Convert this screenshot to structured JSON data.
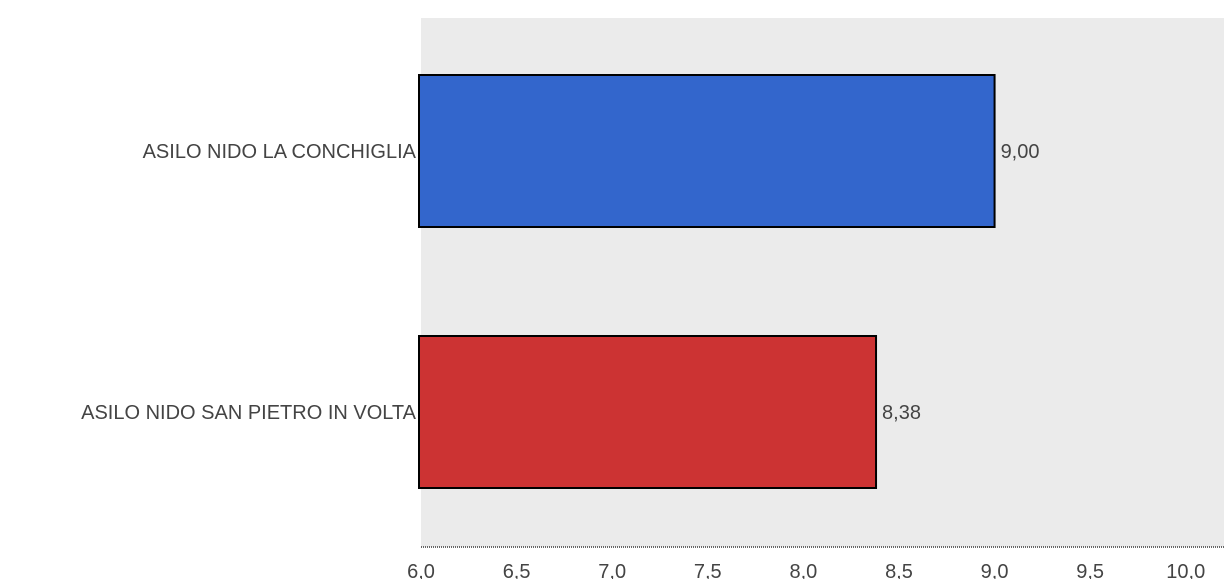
{
  "chart_data": {
    "type": "bar",
    "orientation": "horizontal",
    "title": "",
    "xlabel": "",
    "ylabel": "",
    "xlim": [
      6.0,
      10.2
    ],
    "x_ticks": [
      6.0,
      6.5,
      7.0,
      7.5,
      8.0,
      8.5,
      9.0,
      9.5,
      10.0
    ],
    "x_tick_labels": [
      "6,0",
      "6,5",
      "7,0",
      "7,5",
      "8,0",
      "8,5",
      "9,0",
      "9,5",
      "10,0"
    ],
    "grid": false,
    "background_color": "#ebebeb",
    "bars": [
      {
        "category": "ASILO NIDO LA CONCHIGLIA",
        "value": 9.0,
        "label": "9,00",
        "color": "#3366cc"
      },
      {
        "category": "ASILO NIDO SAN PIETRO IN VOLTA",
        "value": 8.38,
        "label": "8,38",
        "color": "#cc3333"
      }
    ]
  }
}
